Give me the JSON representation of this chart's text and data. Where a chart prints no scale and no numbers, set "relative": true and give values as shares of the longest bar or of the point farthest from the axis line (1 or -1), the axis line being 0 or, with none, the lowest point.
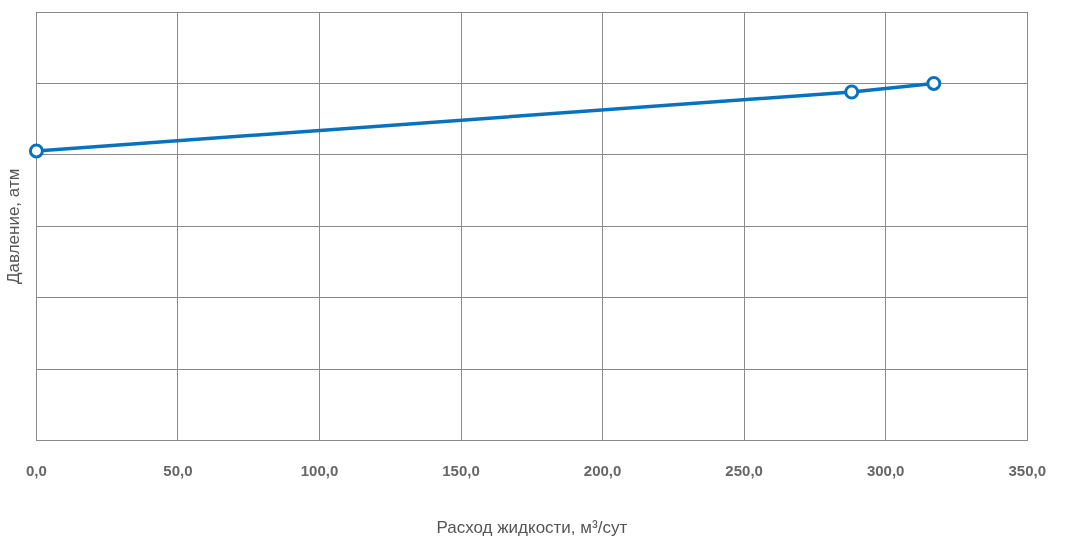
{
  "chart_data": {
    "type": "line",
    "xlabel": "Расход жидкости, м³/сут",
    "ylabel": "Давление, атм",
    "relative": true,
    "xlim": [
      0,
      350
    ],
    "xticks": [
      {
        "value": 0,
        "label": "0,0"
      },
      {
        "value": 50,
        "label": "50,0"
      },
      {
        "value": 100,
        "label": "100,0"
      },
      {
        "value": 150,
        "label": "150,0"
      },
      {
        "value": 200,
        "label": "200,0"
      },
      {
        "value": 250,
        "label": "250,0"
      },
      {
        "value": 300,
        "label": "300,0"
      },
      {
        "value": 350,
        "label": "350,0"
      }
    ],
    "series": [
      {
        "color": "#0a72bd",
        "x": [
          0,
          288,
          317
        ],
        "values": [
          0.811,
          0.976,
          1
        ]
      }
    ],
    "grid": true,
    "marker": "circle",
    "line_style": "solid",
    "legend": false
  }
}
